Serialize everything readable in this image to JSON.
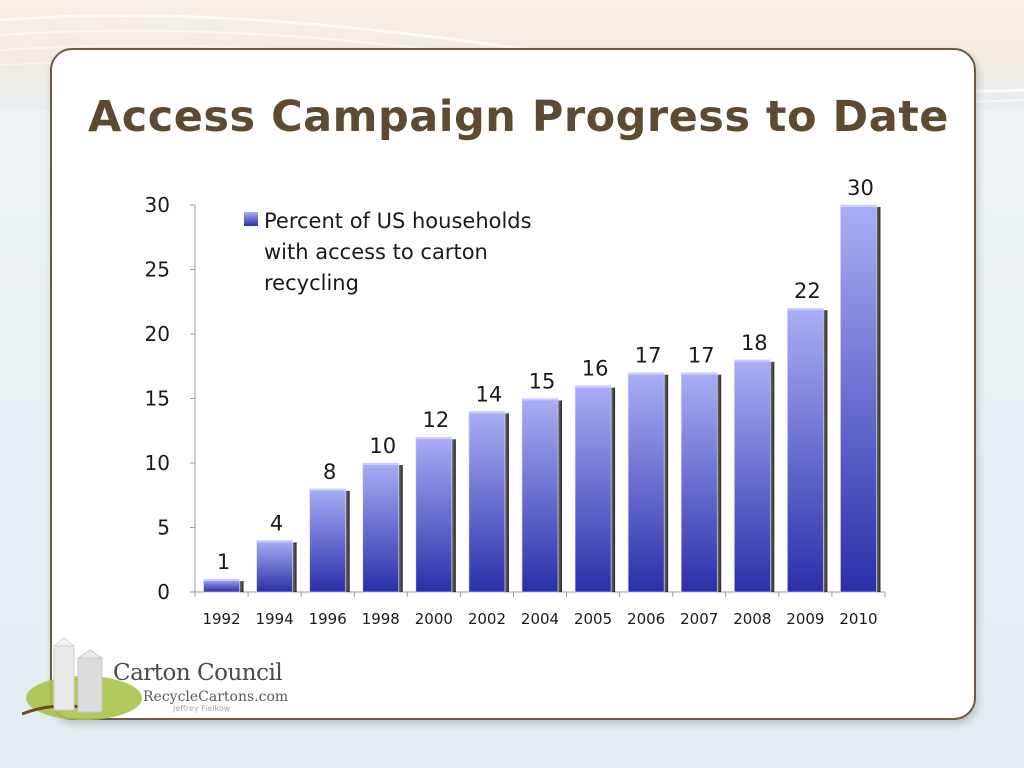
{
  "slide": {
    "title": "Access Campaign Progress to Date"
  },
  "logo": {
    "name": "Carton Council",
    "url": "RecycleCartons.com",
    "credit": "Jeffrey Fielkow"
  },
  "colors": {
    "title": "#5e4a32",
    "bar_top": "#a9aef5",
    "bar_bottom": "#2b2fa9",
    "card_border": "#6b5a45"
  },
  "chart_data": {
    "type": "bar",
    "title": "",
    "xlabel": "",
    "ylabel": "",
    "categories": [
      "1992",
      "1994",
      "1996",
      "1998",
      "2000",
      "2002",
      "2004",
      "2005",
      "2006",
      "2007",
      "2008",
      "2009",
      "2010"
    ],
    "series": [
      {
        "name": "Percent of US households with access to carton recycling",
        "values": [
          1,
          4,
          8,
          10,
          12,
          14,
          15,
          16,
          17,
          17,
          18,
          22,
          30
        ]
      }
    ],
    "ylim": [
      0,
      30
    ],
    "yticks": [
      0,
      5,
      10,
      15,
      20,
      25,
      30
    ],
    "data_labels": true,
    "grid": false,
    "legend": "top-left"
  }
}
